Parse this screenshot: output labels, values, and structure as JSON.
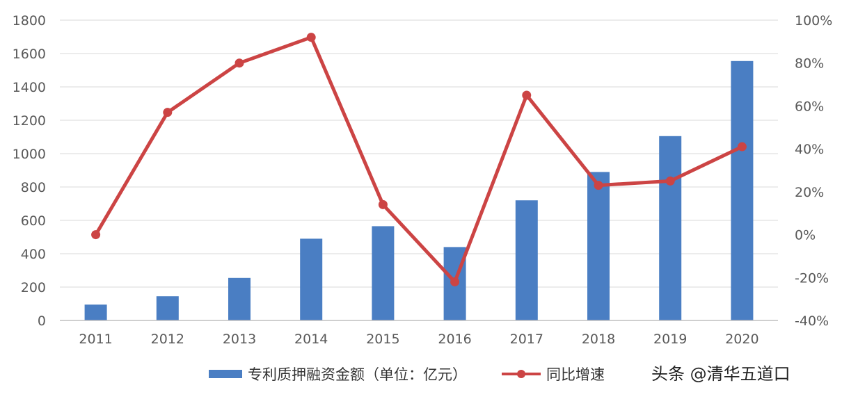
{
  "chart_data": {
    "type": "bar+line",
    "categories": [
      "2011",
      "2012",
      "2013",
      "2014",
      "2015",
      "2016",
      "2017",
      "2018",
      "2019",
      "2020"
    ],
    "series": [
      {
        "name": "专利质押融资金额（单位：亿元）",
        "type": "bar",
        "axis": "left",
        "values": [
          95,
          145,
          255,
          490,
          565,
          440,
          720,
          890,
          1105,
          1555
        ]
      },
      {
        "name": "同比增速",
        "type": "line",
        "axis": "right",
        "values": [
          0,
          57,
          80,
          92,
          14,
          -22,
          65,
          23,
          25,
          41
        ]
      }
    ],
    "y_left": {
      "min": 0,
      "max": 1800,
      "ticks": [
        "0",
        "200",
        "400",
        "600",
        "800",
        "1000",
        "1200",
        "1400",
        "1600",
        "1800"
      ]
    },
    "y_right": {
      "min": -40,
      "max": 100,
      "ticks": [
        "-40%",
        "-20%",
        "0%",
        "20%",
        "40%",
        "60%",
        "80%",
        "100%"
      ]
    },
    "grid": true,
    "legend_position": "bottom",
    "colors": {
      "bar": "#4a7ec3",
      "line": "#cc4444",
      "grid": "#d9d9d9",
      "axis": "#bfbfbf",
      "text": "#595959"
    }
  },
  "legend": {
    "bar_label": "专利质押融资金额（单位：亿元）",
    "line_label": "同比增速"
  },
  "watermark": "头条 @清华五道口"
}
